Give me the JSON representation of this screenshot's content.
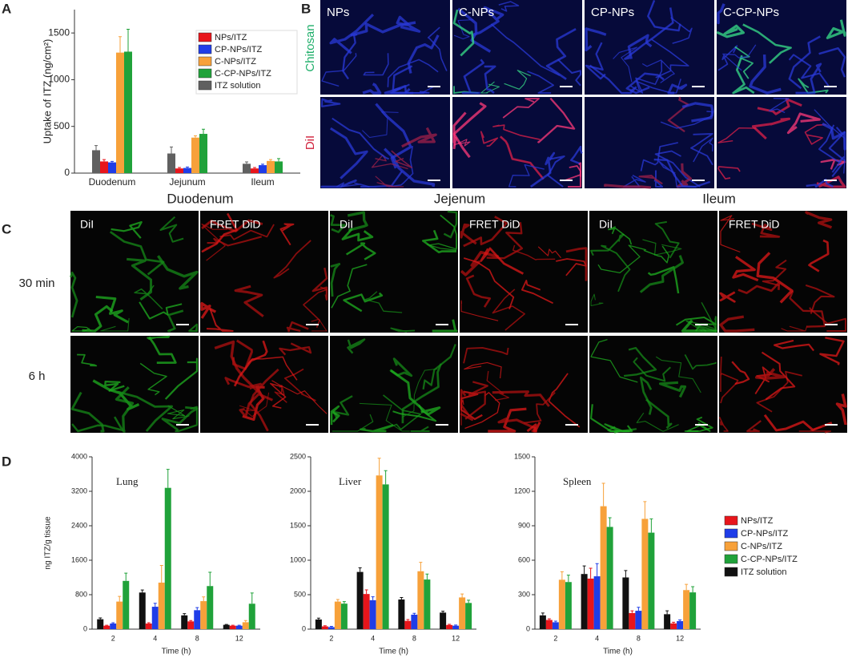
{
  "panels": [
    "A",
    "B",
    "C",
    "D"
  ],
  "panel_b": {
    "columns": [
      "NPs",
      "C-NPs",
      "CP-NPs",
      "C-CP-NPs"
    ],
    "rows": [
      "Chitosan",
      "DiI"
    ]
  },
  "panel_c": {
    "regions": [
      "Duodenum",
      "Jejenum",
      "Ileum"
    ],
    "columns": [
      "DiI",
      "FRET DiD",
      "DiI",
      "FRET DiD",
      "DiI",
      "FRET DiD"
    ],
    "rows": [
      "30 min",
      "6 h"
    ]
  },
  "chart_data": [
    {
      "type": "bar",
      "y_label": "Uptake of ITZ (ng/cm²)",
      "categories": [
        "Duodenum",
        "Jejunum",
        "Ileum"
      ],
      "ylim": [
        0,
        1750
      ],
      "yticks": [
        0,
        500,
        1000,
        1500
      ],
      "legend": "upper right",
      "series": [
        {
          "name": "NPs/ITZ",
          "color": "#e8151b",
          "values": [
            125,
            50,
            50
          ],
          "errors": [
            20,
            10,
            10
          ]
        },
        {
          "name": "CP-NPs/ITZ",
          "color": "#1f3de8",
          "values": [
            115,
            55,
            85
          ],
          "errors": [
            10,
            10,
            10
          ]
        },
        {
          "name": "C-NPs/ITZ",
          "color": "#f7a13a",
          "values": [
            1290,
            380,
            130
          ],
          "errors": [
            170,
            20,
            15
          ]
        },
        {
          "name": "C-CP-NPs/ITZ",
          "color": "#20a23a",
          "values": [
            1300,
            420,
            125
          ],
          "errors": [
            240,
            50,
            30
          ]
        },
        {
          "name": "ITZ solution",
          "color": "#606060",
          "values": [
            245,
            210,
            100
          ],
          "errors": [
            50,
            70,
            20
          ]
        }
      ]
    },
    {
      "type": "bar",
      "title": "Lung",
      "y_label": "ng ITZ/g tissue",
      "x_label": "Time (h)",
      "categories": [
        "2",
        "4",
        "8",
        "12"
      ],
      "ylim": [
        0,
        4000
      ],
      "yticks": [
        0,
        800,
        1600,
        2400,
        3200,
        4000
      ],
      "series": [
        {
          "name": "NPs/ITZ",
          "color": "#e8151b",
          "values": [
            80,
            130,
            180,
            80
          ],
          "errors": [
            10,
            20,
            20,
            10
          ]
        },
        {
          "name": "CP-NPs/ITZ",
          "color": "#1f3de8",
          "values": [
            130,
            520,
            440,
            80
          ],
          "errors": [
            20,
            80,
            60,
            10
          ]
        },
        {
          "name": "C-NPs/ITZ",
          "color": "#f7a13a",
          "values": [
            640,
            1080,
            650,
            160
          ],
          "errors": [
            120,
            400,
            100,
            40
          ]
        },
        {
          "name": "C-CP-NPs/ITZ",
          "color": "#20a23a",
          "values": [
            1120,
            3280,
            1000,
            590
          ],
          "errors": [
            180,
            430,
            320,
            250
          ]
        },
        {
          "name": "ITZ solution",
          "color": "#111111",
          "values": [
            230,
            850,
            320,
            100
          ],
          "errors": [
            30,
            60,
            40,
            10
          ]
        }
      ]
    },
    {
      "type": "bar",
      "title": "Liver",
      "x_label": "Time (h)",
      "categories": [
        "2",
        "4",
        "8",
        "12"
      ],
      "ylim": [
        0,
        2500
      ],
      "yticks": [
        0,
        500,
        1000,
        1500,
        2000,
        2500
      ],
      "series": [
        {
          "name": "NPs/ITZ",
          "color": "#e8151b",
          "values": [
            40,
            510,
            120,
            60
          ],
          "errors": [
            10,
            60,
            20,
            10
          ]
        },
        {
          "name": "CP-NPs/ITZ",
          "color": "#1f3de8",
          "values": [
            30,
            420,
            210,
            50
          ],
          "errors": [
            10,
            50,
            20,
            10
          ]
        },
        {
          "name": "C-NPs/ITZ",
          "color": "#f7a13a",
          "values": [
            400,
            2230,
            840,
            460
          ],
          "errors": [
            30,
            250,
            130,
            50
          ]
        },
        {
          "name": "C-CP-NPs/ITZ",
          "color": "#20a23a",
          "values": [
            370,
            2100,
            720,
            380
          ],
          "errors": [
            30,
            200,
            80,
            40
          ]
        },
        {
          "name": "ITZ solution",
          "color": "#111111",
          "values": [
            140,
            830,
            430,
            240
          ],
          "errors": [
            20,
            60,
            30,
            20
          ]
        }
      ]
    },
    {
      "type": "bar",
      "title": "Spleen",
      "x_label": "Time (h)",
      "categories": [
        "2",
        "4",
        "8",
        "12"
      ],
      "ylim": [
        0,
        1500
      ],
      "yticks": [
        0,
        300,
        600,
        900,
        1200,
        1500
      ],
      "legend": "right",
      "series": [
        {
          "name": "NPs/ITZ",
          "color": "#e8151b",
          "values": [
            80,
            440,
            140,
            50
          ],
          "errors": [
            10,
            90,
            20,
            10
          ]
        },
        {
          "name": "CP-NPs/ITZ",
          "color": "#1f3de8",
          "values": [
            60,
            460,
            160,
            70
          ],
          "errors": [
            10,
            110,
            30,
            10
          ]
        },
        {
          "name": "C-NPs/ITZ",
          "color": "#f7a13a",
          "values": [
            430,
            1070,
            960,
            340
          ],
          "errors": [
            70,
            200,
            150,
            50
          ]
        },
        {
          "name": "C-CP-NPs/ITZ",
          "color": "#20a23a",
          "values": [
            410,
            890,
            840,
            320
          ],
          "errors": [
            60,
            80,
            120,
            50
          ]
        },
        {
          "name": "ITZ solution",
          "color": "#111111",
          "values": [
            120,
            480,
            450,
            130
          ],
          "errors": [
            20,
            70,
            60,
            30
          ]
        }
      ]
    }
  ]
}
